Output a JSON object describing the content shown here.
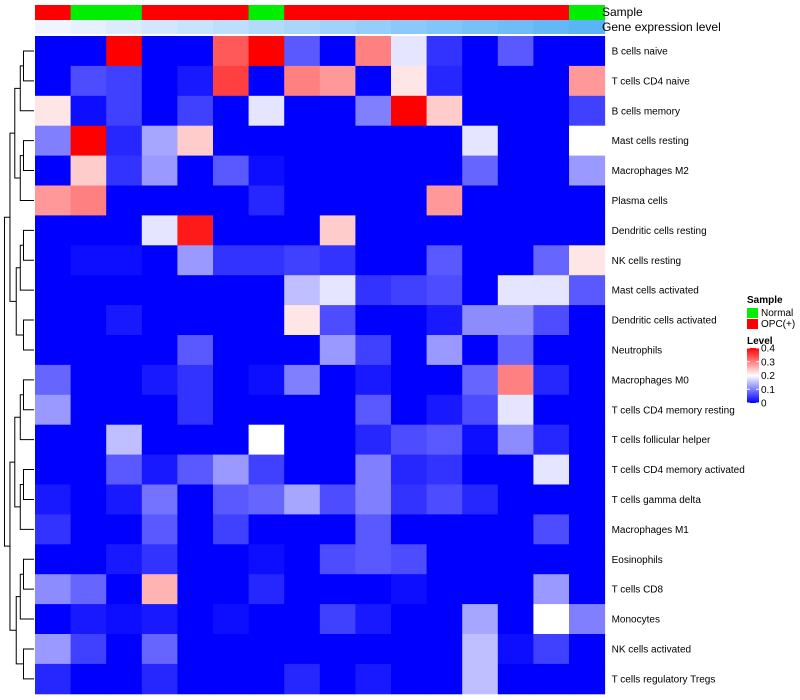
{
  "chart_data": {
    "type": "heatmap",
    "title": "",
    "annotations": {
      "sample_label": "Sample",
      "expression_label": "Gene expression level",
      "sample": [
        "OPC(+)",
        "Normal",
        "Normal",
        "OPC(+)",
        "OPC(+)",
        "OPC(+)",
        "Normal",
        "OPC(+)",
        "OPC(+)",
        "OPC(+)",
        "OPC(+)",
        "OPC(+)",
        "OPC(+)",
        "OPC(+)",
        "OPC(+)",
        "Normal"
      ],
      "expression_level": [
        0.02,
        0.04,
        0.06,
        0.08,
        0.1,
        0.12,
        0.14,
        0.16,
        0.18,
        0.2,
        0.22,
        0.24,
        0.26,
        0.28,
        0.3,
        0.32
      ]
    },
    "rows": [
      "B cells naive",
      "T cells CD4 naive",
      "B cells memory",
      "Mast cells resting",
      "Macrophages M2",
      "Plasma cells",
      "Dendritic cells resting",
      "NK cells resting",
      "Mast cells activated",
      "Dendritic cells activated",
      "Neutrophils",
      "Macrophages M0",
      "T cells CD4 memory resting",
      "T cells follicular helper",
      "T cells CD4 memory activated",
      "T cells gamma delta",
      "Macrophages M1",
      "Eosinophils",
      "T cells CD8",
      "Monocytes",
      "NK cells activated",
      "T cells regulatory  Tregs"
    ],
    "values": [
      [
        0,
        0,
        0.4,
        0,
        0,
        0.33,
        0.4,
        0.07,
        0,
        0.3,
        0.18,
        0.04,
        0,
        0.07,
        0,
        0
      ],
      [
        0,
        0.06,
        0.05,
        0,
        0.02,
        0.35,
        0,
        0.3,
        0.28,
        0,
        0.22,
        0.03,
        0,
        0,
        0,
        0.28
      ],
      [
        0.22,
        0.01,
        0.05,
        0,
        0.05,
        0,
        0.18,
        0,
        0,
        0.1,
        0.4,
        0.24,
        0,
        0,
        0,
        0.05
      ],
      [
        0.1,
        0.4,
        0.03,
        0.13,
        0.24,
        0,
        0,
        0,
        0,
        0,
        0,
        0,
        0.18,
        0,
        0,
        0.2
      ],
      [
        0,
        0.24,
        0.04,
        0.12,
        0,
        0.07,
        0.01,
        0,
        0,
        0,
        0,
        0,
        0.08,
        0,
        0,
        0.12
      ],
      [
        0.28,
        0.3,
        0,
        0,
        0,
        0,
        0.03,
        0,
        0,
        0,
        0,
        0.28,
        0,
        0,
        0,
        0
      ],
      [
        0,
        0,
        0,
        0.18,
        0.38,
        0,
        0,
        0,
        0.24,
        0,
        0,
        0,
        0,
        0,
        0,
        0
      ],
      [
        0,
        0.01,
        0.01,
        0,
        0.12,
        0.04,
        0.04,
        0.05,
        0.04,
        0,
        0,
        0.07,
        0,
        0,
        0.08,
        0.22
      ],
      [
        0,
        0,
        0,
        0,
        0,
        0,
        0,
        0.15,
        0.18,
        0.04,
        0.05,
        0.06,
        0,
        0.18,
        0.18,
        0.07
      ],
      [
        0,
        0,
        0.02,
        0,
        0,
        0,
        0,
        0.22,
        0.06,
        0,
        0,
        0.02,
        0.11,
        0.11,
        0.06,
        0
      ],
      [
        0,
        0,
        0,
        0,
        0.07,
        0,
        0,
        0,
        0.12,
        0.05,
        0,
        0.12,
        0,
        0.08,
        0,
        0
      ],
      [
        0.08,
        0,
        0,
        0.02,
        0.04,
        0,
        0.01,
        0.1,
        0,
        0.02,
        0,
        0,
        0.08,
        0.3,
        0.03,
        0
      ],
      [
        0.12,
        0,
        0,
        0,
        0.04,
        0,
        0,
        0,
        0,
        0.07,
        0,
        0.02,
        0.06,
        0.18,
        0,
        0
      ],
      [
        0,
        0,
        0.15,
        0,
        0,
        0,
        0.2,
        0,
        0,
        0.03,
        0.06,
        0.07,
        0.01,
        0.11,
        0.03,
        0
      ],
      [
        0,
        0,
        0.07,
        0.02,
        0.07,
        0.12,
        0.05,
        0,
        0,
        0.1,
        0.03,
        0.04,
        0,
        0,
        0.18,
        0
      ],
      [
        0.02,
        0,
        0.02,
        0.09,
        0,
        0.07,
        0.08,
        0.13,
        0.06,
        0.1,
        0.04,
        0.06,
        0.03,
        0,
        0,
        0
      ],
      [
        0.04,
        0,
        0,
        0.07,
        0,
        0.05,
        0,
        0,
        0,
        0.07,
        0,
        0,
        0,
        0,
        0.06,
        0
      ],
      [
        0,
        0,
        0.02,
        0.04,
        0,
        0,
        0.01,
        0,
        0.06,
        0.07,
        0.06,
        0,
        0,
        0,
        0,
        0
      ],
      [
        0.11,
        0.08,
        0,
        0.26,
        0,
        0,
        0.03,
        0,
        0,
        0,
        0.01,
        0,
        0,
        0,
        0.12,
        0
      ],
      [
        0,
        0.02,
        0.01,
        0.02,
        0,
        0.01,
        0,
        0,
        0.05,
        0.02,
        0,
        0,
        0.13,
        0,
        0.2,
        0.1
      ],
      [
        0.12,
        0.05,
        0,
        0.08,
        0,
        0,
        0,
        0,
        0,
        0,
        0,
        0,
        0.15,
        0.01,
        0.05,
        0
      ],
      [
        0.03,
        0,
        0,
        0.03,
        0,
        0,
        0,
        0.03,
        0,
        0.02,
        0,
        0,
        0.15,
        0,
        0,
        0
      ]
    ],
    "color_scale": {
      "min": 0,
      "max": 0.4,
      "low": "#0000ff",
      "mid": "#ffffff",
      "high": "#ff0000",
      "mid_value": 0.2
    },
    "legend": {
      "sample_title": "Sample",
      "sample_entries": [
        {
          "label": "Normal",
          "color": "#00ee00"
        },
        {
          "label": "OPC(+)",
          "color": "#ff0000"
        }
      ],
      "level_title": "Level",
      "level_ticks": [
        {
          "value": 0.4,
          "label": "0.4"
        },
        {
          "value": 0.3,
          "label": "0.3"
        },
        {
          "value": 0.2,
          "label": "0.2"
        },
        {
          "value": 0.1,
          "label": "0.1"
        },
        {
          "value": 0,
          "label": "0"
        }
      ]
    },
    "dendrogram": "row"
  },
  "colors": {
    "normal": "#00ee00",
    "opc": "#ff0000",
    "expr_low": "#f0f4ff",
    "expr_high": "#5ab4f5"
  }
}
